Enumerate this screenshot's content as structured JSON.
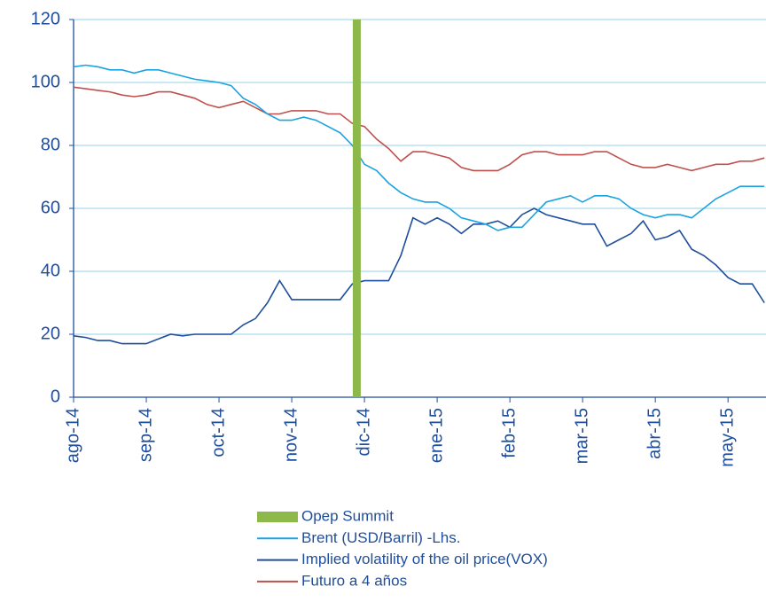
{
  "chart_data": {
    "type": "line",
    "categories": [
      "ago-14",
      null,
      null,
      null,
      null,
      null,
      "sep-14",
      null,
      null,
      null,
      null,
      null,
      "oct-14",
      null,
      null,
      null,
      null,
      null,
      "nov-14",
      null,
      null,
      null,
      null,
      null,
      "dic-14",
      null,
      null,
      null,
      null,
      null,
      "ene-15",
      null,
      null,
      null,
      null,
      null,
      "feb-15",
      null,
      null,
      null,
      null,
      null,
      "mar-15",
      null,
      null,
      null,
      null,
      null,
      "abr-15",
      null,
      null,
      null,
      null,
      null,
      "may-15",
      null,
      null,
      null
    ],
    "ylim": [
      0,
      120
    ],
    "yticks": [
      0,
      20,
      40,
      60,
      80,
      100,
      120
    ],
    "grid": true,
    "series": [
      {
        "name": "Opep Summit",
        "type": "bar",
        "color": "#8db84a",
        "values": [
          null,
          null,
          null,
          null,
          null,
          null,
          null,
          null,
          null,
          null,
          null,
          null,
          null,
          null,
          null,
          null,
          null,
          null,
          null,
          null,
          null,
          null,
          null,
          120,
          null,
          null,
          null,
          null,
          null,
          null,
          null,
          null,
          null,
          null,
          null,
          null,
          null,
          null,
          null,
          null,
          null,
          null,
          null,
          null,
          null,
          null,
          null,
          null,
          null,
          null,
          null,
          null,
          null,
          null,
          null,
          null,
          null,
          null
        ]
      },
      {
        "name": "Brent (USD/Barril) -Lhs.",
        "type": "line",
        "color": "#1aa3e0",
        "values": [
          105,
          105.5,
          105,
          104,
          104,
          103,
          104,
          104,
          103,
          102,
          101,
          100.5,
          100,
          99,
          95,
          93,
          90,
          88,
          88,
          89,
          88,
          86,
          84,
          80,
          74,
          72,
          68,
          65,
          63,
          62,
          62,
          60,
          57,
          56,
          55,
          53,
          54,
          54,
          58,
          62,
          63,
          64,
          62,
          64,
          64,
          63,
          60,
          58,
          57,
          58,
          58,
          57,
          60,
          63,
          65,
          67,
          67,
          67
        ]
      },
      {
        "name": "Implied volatility of the oil price(VOX)",
        "type": "line",
        "color": "#1f4e9c",
        "values": [
          19.5,
          19,
          18,
          18,
          17,
          17,
          17,
          18.5,
          20,
          19.5,
          20,
          20,
          20,
          20,
          23,
          25,
          30,
          37,
          31,
          31,
          31,
          31,
          31,
          36,
          37,
          37,
          37,
          45,
          57,
          55,
          57,
          55,
          52,
          55,
          55,
          56,
          54,
          58,
          60,
          58,
          57,
          56,
          55,
          55,
          48,
          50,
          52,
          56,
          50,
          51,
          53,
          47,
          45,
          42,
          38,
          36,
          36,
          30
        ]
      },
      {
        "name": "Futuro a 4 años",
        "type": "line",
        "color": "#c0504d",
        "values": [
          98.5,
          98,
          97.5,
          97,
          96,
          95.5,
          96,
          97,
          97,
          96,
          95,
          93,
          92,
          93,
          94,
          92,
          90,
          90,
          91,
          91,
          91,
          90,
          90,
          87,
          86,
          82,
          79,
          75,
          78,
          78,
          77,
          76,
          73,
          72,
          72,
          72,
          74,
          77,
          78,
          78,
          77,
          77,
          77,
          78,
          78,
          76,
          74,
          73,
          73,
          74,
          73,
          72,
          73,
          74,
          74,
          75,
          75,
          76
        ]
      }
    ]
  }
}
